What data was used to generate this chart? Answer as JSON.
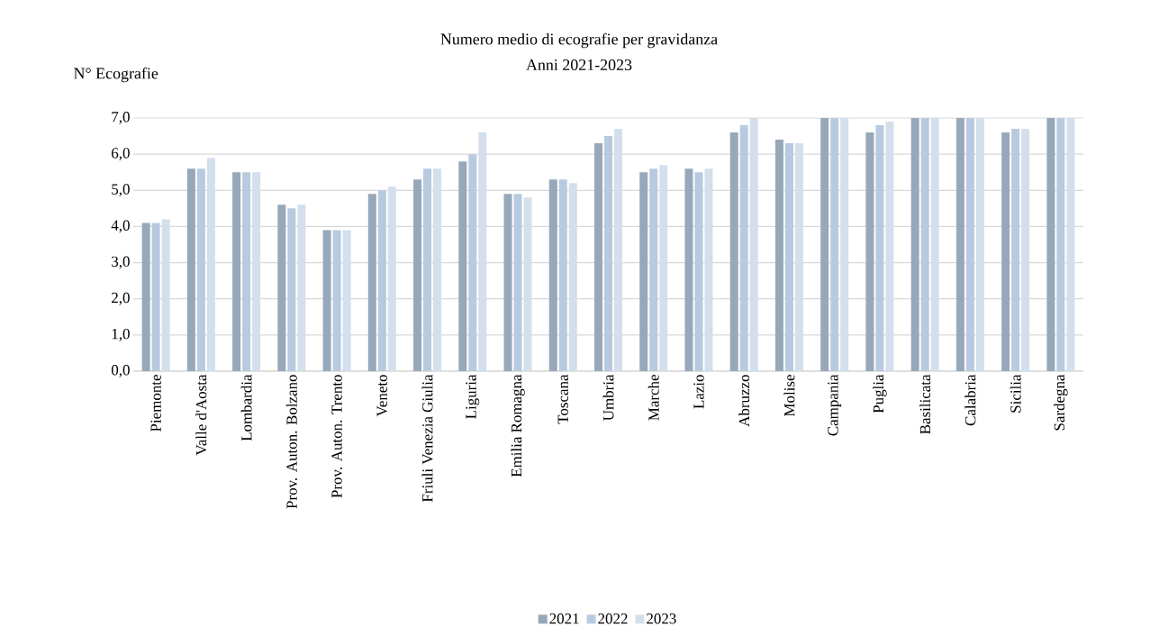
{
  "chart_data": {
    "type": "bar",
    "title": "Numero medio di ecografie per gravidanza",
    "subtitle": "Anni 2021-2023",
    "ylabel": "N° Ecografie",
    "categories": [
      "Piemonte",
      "Valle d'Aosta",
      "Lombardia",
      "Prov. Auton. Bolzano",
      "Prov. Auton. Trento",
      "Veneto",
      "Friuli Venezia Giulia",
      "Liguria",
      "Emilia Romagna",
      "Toscana",
      "Umbria",
      "Marche",
      "Lazio",
      "Abruzzo",
      "Molise",
      "Campania",
      "Puglia",
      "Basilicata",
      "Calabria",
      "Sicilia",
      "Sardegna"
    ],
    "series": [
      {
        "name": "2021",
        "color": "#97a8ba",
        "values": [
          4.1,
          5.6,
          5.5,
          4.6,
          3.9,
          4.9,
          5.3,
          5.8,
          4.9,
          5.3,
          6.3,
          5.5,
          5.6,
          6.6,
          6.4,
          7.0,
          6.6,
          7.0,
          7.0,
          6.6,
          7.0
        ]
      },
      {
        "name": "2022",
        "color": "#b7cadf",
        "values": [
          4.1,
          5.6,
          5.5,
          4.5,
          3.9,
          5.0,
          5.6,
          6.0,
          4.9,
          5.3,
          6.5,
          5.6,
          5.5,
          6.8,
          6.3,
          7.0,
          6.8,
          7.0,
          7.0,
          6.7,
          7.0
        ]
      },
      {
        "name": "2023",
        "color": "#d3dfeb",
        "values": [
          4.2,
          5.9,
          5.5,
          4.6,
          3.9,
          5.1,
          5.6,
          6.6,
          4.8,
          5.2,
          6.7,
          5.7,
          5.6,
          7.0,
          6.3,
          7.0,
          6.9,
          7.0,
          7.0,
          6.7,
          7.0
        ]
      }
    ],
    "ylim": [
      0,
      7
    ],
    "yticks": [
      {
        "value": 0,
        "label": "0,0"
      },
      {
        "value": 1,
        "label": "1,0"
      },
      {
        "value": 2,
        "label": "2,0"
      },
      {
        "value": 3,
        "label": "3,0"
      },
      {
        "value": 4,
        "label": "4,0"
      },
      {
        "value": 5,
        "label": "5,0"
      },
      {
        "value": 6,
        "label": "6,0"
      },
      {
        "value": 7,
        "label": "7,0"
      }
    ],
    "grid": "y",
    "legend": "bottom"
  }
}
